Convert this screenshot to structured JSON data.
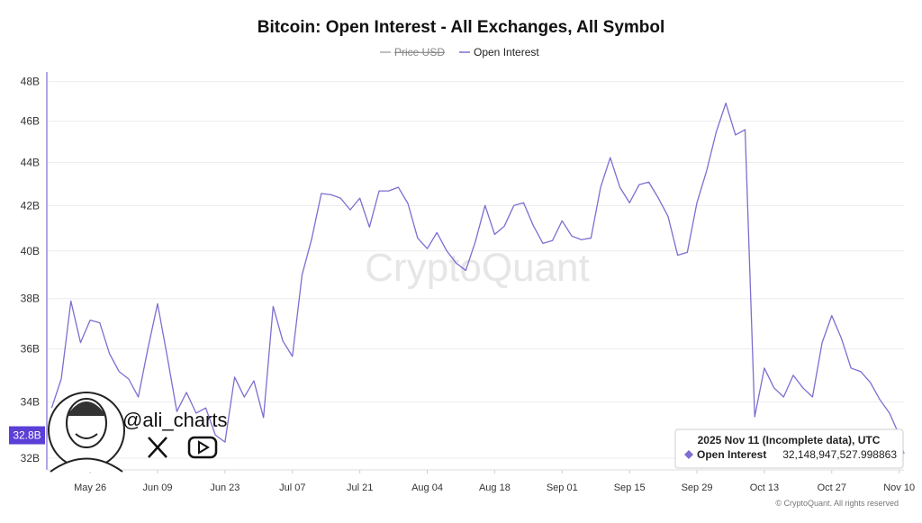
{
  "chart_data": {
    "type": "line",
    "title": "Bitcoin: Open Interest - All Exchanges, All Symbol",
    "log_y": true,
    "grid": true,
    "x": [
      "May 18",
      "May 20",
      "May 22",
      "May 24",
      "May 26",
      "May 28",
      "May 30",
      "Jun 01",
      "Jun 03",
      "Jun 05",
      "Jun 07",
      "Jun 09",
      "Jun 11",
      "Jun 13",
      "Jun 15",
      "Jun 17",
      "Jun 19",
      "Jun 21",
      "Jun 23",
      "Jun 25",
      "Jun 27",
      "Jun 29",
      "Jul 01",
      "Jul 03",
      "Jul 05",
      "Jul 07",
      "Jul 09",
      "Jul 11",
      "Jul 13",
      "Jul 15",
      "Jul 17",
      "Jul 19",
      "Jul 21",
      "Jul 23",
      "Jul 25",
      "Jul 27",
      "Jul 29",
      "Jul 31",
      "Aug 02",
      "Aug 04",
      "Aug 06",
      "Aug 08",
      "Aug 10",
      "Aug 12",
      "Aug 14",
      "Aug 16",
      "Aug 18",
      "Aug 20",
      "Aug 22",
      "Aug 24",
      "Aug 26",
      "Aug 28",
      "Aug 30",
      "Sep 01",
      "Sep 03",
      "Sep 05",
      "Sep 07",
      "Sep 09",
      "Sep 11",
      "Sep 13",
      "Sep 15",
      "Sep 17",
      "Sep 19",
      "Sep 21",
      "Sep 23",
      "Sep 25",
      "Sep 27",
      "Sep 29",
      "Oct 01",
      "Oct 03",
      "Oct 05",
      "Oct 07",
      "Oct 09",
      "Oct 11",
      "Oct 13",
      "Oct 15",
      "Oct 17",
      "Oct 19",
      "Oct 21",
      "Oct 23",
      "Oct 25",
      "Oct 27",
      "Oct 29",
      "Oct 31",
      "Nov 02",
      "Nov 04",
      "Nov 06",
      "Nov 08",
      "Nov 10",
      "Nov 11"
    ],
    "series": [
      {
        "name": "Price USD",
        "color": "#9e9e9e",
        "visible": false
      },
      {
        "name": "Open Interest",
        "color": "#7b6fd0",
        "values": [
          33.78,
          34.85,
          37.9,
          36.24,
          37.13,
          37.02,
          35.82,
          35.13,
          34.85,
          34.18,
          36.02,
          37.79,
          35.71,
          33.65,
          34.35,
          33.59,
          33.78,
          32.81,
          32.56,
          34.92,
          34.18,
          34.78,
          33.43,
          37.68,
          36.31,
          35.71,
          38.98,
          40.52,
          42.55,
          42.5,
          42.34,
          41.81,
          42.34,
          41.04,
          42.67,
          42.67,
          42.84,
          42.09,
          40.56,
          40.1,
          40.8,
          40.02,
          39.48,
          39.17,
          40.41,
          42.01,
          40.72,
          41.08,
          42.01,
          42.13,
          41.12,
          40.33,
          40.45,
          41.32,
          40.65,
          40.49,
          40.56,
          42.84,
          44.23,
          42.84,
          42.13,
          42.96,
          43.08,
          42.34,
          41.52,
          39.82,
          39.94,
          42.13,
          43.59,
          45.46,
          46.9,
          45.32,
          45.58,
          33.46,
          35.26,
          34.52,
          34.18,
          34.99,
          34.52,
          34.18,
          36.24,
          37.31,
          36.41,
          35.26,
          35.13,
          34.72,
          34.08,
          33.59,
          32.81,
          32.15
        ]
      }
    ],
    "xlim": [
      "May 17",
      "Nov 11"
    ],
    "xticks": [
      "May 26",
      "Jun 09",
      "Jun 23",
      "Jul 07",
      "Jul 21",
      "Aug 04",
      "Aug 18",
      "Sep 01",
      "Sep 15",
      "Sep 29",
      "Oct 13",
      "Oct 27",
      "Nov 10"
    ],
    "ylim": [
      31.6,
      48.5
    ],
    "yticks": [
      {
        "value": 32,
        "label": "32B"
      },
      {
        "value": 34,
        "label": "34B"
      },
      {
        "value": 36,
        "label": "36B"
      },
      {
        "value": 38,
        "label": "38B"
      },
      {
        "value": 40,
        "label": "40B"
      },
      {
        "value": 42,
        "label": "42B"
      },
      {
        "value": 44,
        "label": "44B"
      },
      {
        "value": 46,
        "label": "46B"
      },
      {
        "value": 48,
        "label": "48B"
      }
    ],
    "current_label": {
      "value": 32.8,
      "label": "32.8B"
    },
    "tooltip": {
      "title": "2025 Nov 11 (Incomplete data), UTC",
      "value_label": "32,148,947,527.998863"
    },
    "watermark": "CryptoQuant",
    "credit": "© CryptoQuant. All rights reserved",
    "overlay_handle": "@ali_charts"
  }
}
